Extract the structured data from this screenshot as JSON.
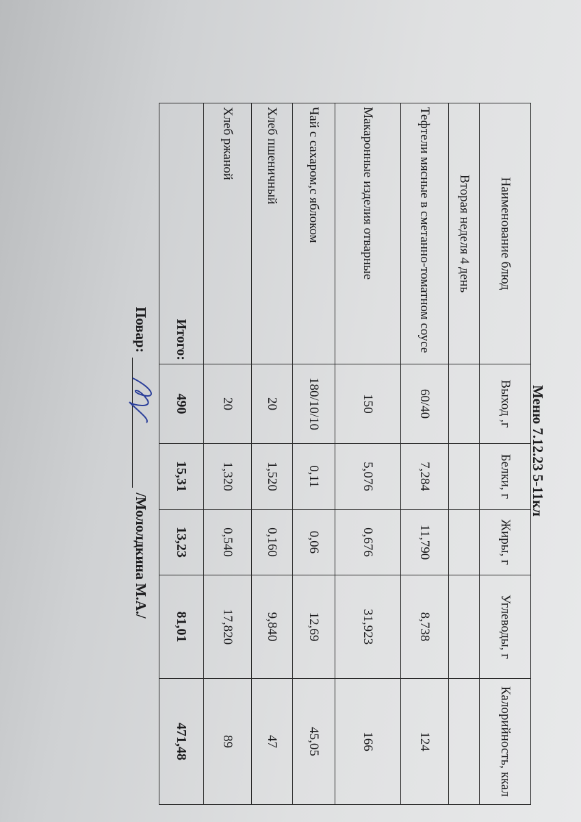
{
  "title": "Меню 7.12.23  5-11кл",
  "headers": [
    "Наименование блюд",
    "Выход ,г",
    "Белки, г",
    "Жиры, г",
    "Углеводы, г",
    "Калорийность, ккал"
  ],
  "section": "Вторая неделя 4 день",
  "rows": [
    {
      "name": "Тефтели мясные в сметанно-томатном соусе",
      "yield": "60/40",
      "protein": "7,284",
      "fat": "11,790",
      "carbs": "8,738",
      "kcal": "124"
    },
    {
      "name": "Макаронные изделия отварные",
      "yield": "150",
      "protein": "5,076",
      "fat": "0,676",
      "carbs": "31,923",
      "kcal": "166"
    },
    {
      "name": "Чай с сахаром,с яблоком",
      "yield": "180/10/10",
      "protein": "0,11",
      "fat": "0,06",
      "carbs": "12,69",
      "kcal": "45,05"
    },
    {
      "name": "Хлеб пшеничный",
      "yield": "20",
      "protein": "1,520",
      "fat": "0,160",
      "carbs": "9,840",
      "kcal": "47"
    },
    {
      "name": "Хлеб ржаной",
      "yield": "20",
      "protein": "1,320",
      "fat": "0,540",
      "carbs": "17,820",
      "kcal": "89"
    }
  ],
  "total": {
    "label": "Итого:",
    "yield": "490",
    "protein": "15,31",
    "fat": "13,23",
    "carbs": "81,01",
    "kcal": "471,48"
  },
  "signature": {
    "label": "Повар:",
    "name": "/Мололдкина М.А./"
  }
}
